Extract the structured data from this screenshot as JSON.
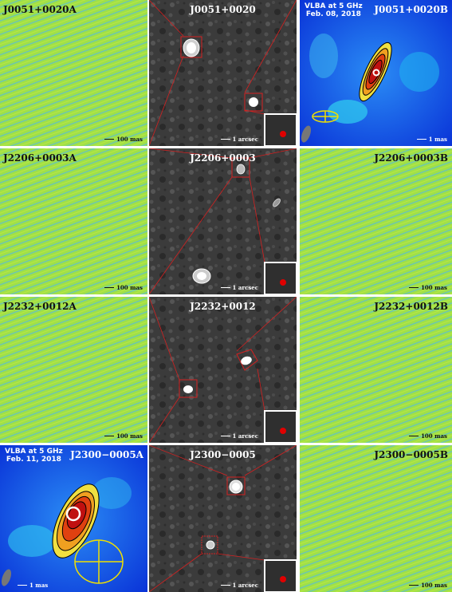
{
  "rows": [
    {
      "a": {
        "title": "J0051+0020A",
        "scale": "100 mas",
        "kind": "noise"
      },
      "mid": {
        "title": "J0051+0020",
        "scale": "1 arcsec"
      },
      "b": {
        "title": "J0051+0020B",
        "scale": "1 mas",
        "kind": "vlba",
        "obs_line1": "VLBA at 5 GHz",
        "obs_line2": "Feb. 08, 2018"
      }
    },
    {
      "a": {
        "title": "J2206+0003A",
        "scale": "100 mas",
        "kind": "noise"
      },
      "mid": {
        "title": "J2206+0003",
        "scale": "1 arcsec"
      },
      "b": {
        "title": "J2206+0003B",
        "scale": "100 mas",
        "kind": "noise"
      }
    },
    {
      "a": {
        "title": "J2232+0012A",
        "scale": "100 mas",
        "kind": "noise"
      },
      "mid": {
        "title": "J2232+0012",
        "scale": "1 arcsec"
      },
      "b": {
        "title": "J2232+0012B",
        "scale": "100 mas",
        "kind": "noise"
      }
    },
    {
      "a": {
        "title": "J2300−0005A",
        "scale": "1 mas",
        "kind": "vlba",
        "obs_line1": "VLBA at 5 GHz",
        "obs_line2": "Feb. 11, 2018"
      },
      "mid": {
        "title": "J2300−0005",
        "scale": "1 arcsec"
      },
      "b": {
        "title": "J2300−0005B",
        "scale": "100 mas",
        "kind": "noise"
      }
    }
  ],
  "colors": {
    "noise_bg": "#9ee04a",
    "noise_stripe": "#5ab4d8",
    "optical_bg": "#3a3a3a",
    "vlba_bg": "#1458e6",
    "box_red": "#d42020",
    "beam_red": "#e00000",
    "contour": "#000000",
    "beam_yellow": "#f0e000"
  }
}
